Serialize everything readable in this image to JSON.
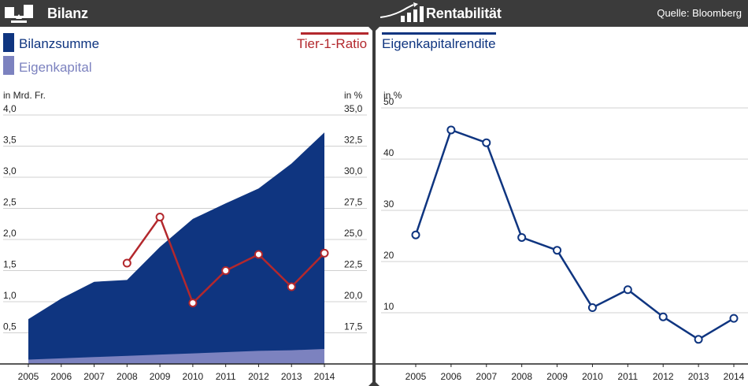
{
  "left_panel": {
    "title": "Bilanz",
    "title_icon": "balance-scale-icon",
    "legend": {
      "bilanzsumme": "Bilanzsumme",
      "eigenkapital": "Eigenkapital",
      "tier1": "Tier-1-Ratio"
    },
    "unit_left": "in Mrd. Fr.",
    "unit_right": "in %"
  },
  "right_panel": {
    "title": "Rentabilität",
    "title_icon": "rising-bars-icon",
    "source": "Quelle: Bloomberg",
    "legend": {
      "eigenkapitalrendite": "Eigenkapitalrendite"
    },
    "unit": "in %"
  },
  "colors": {
    "header_bg": "#3b3b3b",
    "bilanzsumme": "#0f3580",
    "eigenkapital": "#7c82bf",
    "tier1": "#b3282d",
    "rendite": "#0f3580",
    "grid": "#d0d0d0"
  },
  "chart_data": [
    {
      "type": "area",
      "name": "Bilanz",
      "categories": [
        "2005",
        "2006",
        "2007",
        "2008",
        "2009",
        "2010",
        "2011",
        "2012",
        "2013",
        "2014"
      ],
      "y_left": {
        "label": "in Mrd. Fr.",
        "ylim": [
          0,
          4.0
        ],
        "ticks": [
          "0,5",
          "1,0",
          "1,5",
          "2,0",
          "2,5",
          "3,0",
          "3,5",
          "4,0"
        ],
        "tick_values": [
          0.5,
          1.0,
          1.5,
          2.0,
          2.5,
          3.0,
          3.5,
          4.0
        ]
      },
      "y_right": {
        "label": "in %",
        "ylim": [
          15.0,
          35.0
        ],
        "ticks": [
          "17,5",
          "20,0",
          "22,5",
          "25,0",
          "27,5",
          "30,0",
          "32,5",
          "35,0"
        ],
        "tick_values": [
          17.5,
          20.0,
          22.5,
          25.0,
          27.5,
          30.0,
          32.5,
          35.0
        ]
      },
      "series": [
        {
          "name": "Bilanzsumme",
          "kind": "area",
          "axis": "left",
          "values": [
            0.72,
            1.05,
            1.32,
            1.35,
            1.88,
            2.33,
            2.58,
            2.82,
            3.22,
            3.72
          ]
        },
        {
          "name": "Eigenkapital",
          "kind": "area",
          "axis": "left",
          "values": [
            0.07,
            0.09,
            0.11,
            0.13,
            0.15,
            0.17,
            0.19,
            0.21,
            0.22,
            0.24
          ]
        },
        {
          "name": "Tier-1-Ratio",
          "kind": "line",
          "axis": "right",
          "values": [
            null,
            null,
            null,
            23.1,
            26.8,
            19.9,
            22.5,
            23.8,
            21.2,
            23.9
          ]
        }
      ]
    },
    {
      "type": "line",
      "name": "Rentabilität",
      "categories": [
        "2005",
        "2006",
        "2007",
        "2008",
        "2009",
        "2010",
        "2011",
        "2012",
        "2013",
        "2014"
      ],
      "ylabel": "in %",
      "ylim": [
        0,
        50
      ],
      "ticks": [
        "10",
        "20",
        "30",
        "40",
        "50"
      ],
      "tick_values": [
        10,
        20,
        30,
        40,
        50
      ],
      "series": [
        {
          "name": "Eigenkapitalrendite",
          "values": [
            25.2,
            45.7,
            43.2,
            24.7,
            22.2,
            11.0,
            14.5,
            9.2,
            4.8,
            8.9
          ]
        }
      ]
    }
  ]
}
